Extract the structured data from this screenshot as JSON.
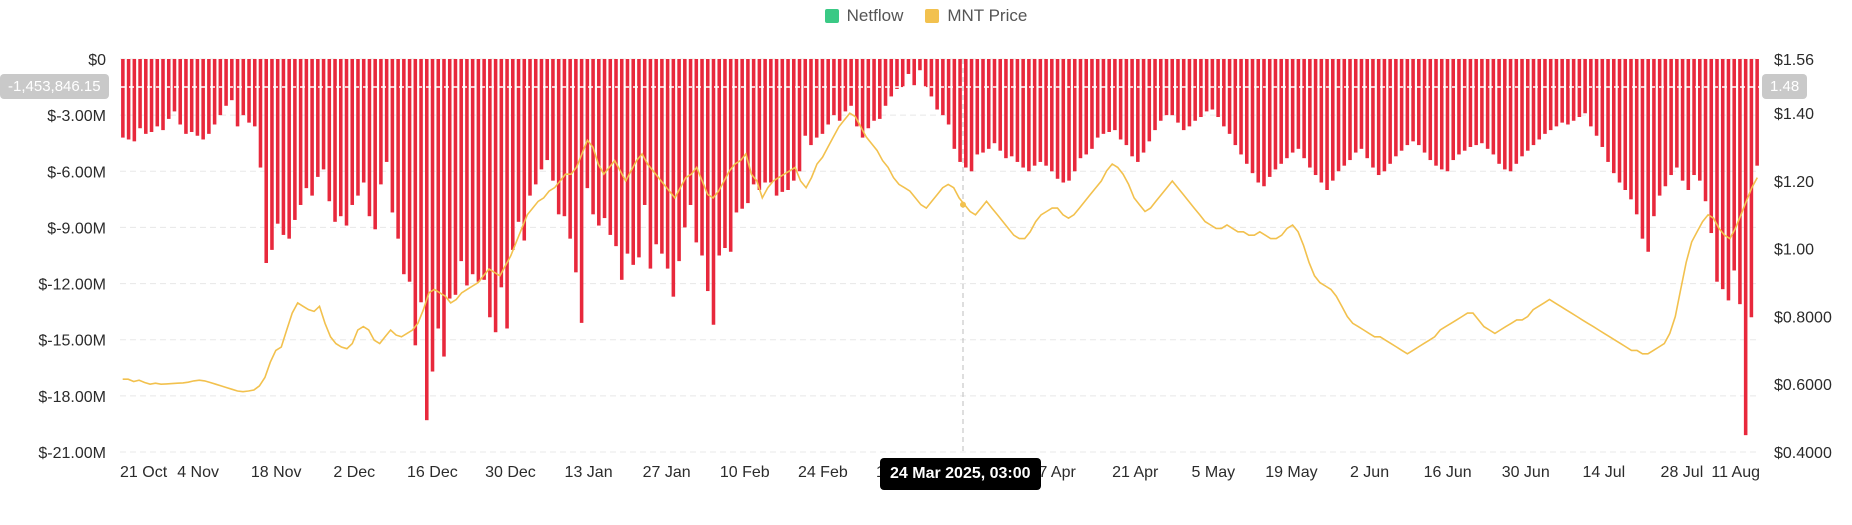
{
  "legend": {
    "netflow_label": "Netflow",
    "price_label": "MNT Price",
    "netflow_color": "#3ac985",
    "price_color": "#f2c14e"
  },
  "crosshair": {
    "left_value": "-1,453,846.15",
    "right_value": "1.48",
    "date_label": "24 Mar 2025, 03:00"
  },
  "chart_data": {
    "type": "bar",
    "x_tick_labels": [
      "21 Oct",
      "4 Nov",
      "18 Nov",
      "2 Dec",
      "16 Dec",
      "30 Dec",
      "13 Jan",
      "27 Jan",
      "10 Feb",
      "24 Feb",
      "10 Mar",
      "24 Mar",
      "7 Apr",
      "21 Apr",
      "5 May",
      "19 May",
      "2 Jun",
      "16 Jun",
      "30 Jun",
      "14 Jul",
      "28 Jul",
      "11 Aug"
    ],
    "y_left": {
      "ticks": [
        0,
        -3000000,
        -6000000,
        -9000000,
        -12000000,
        -15000000,
        -18000000,
        -21000000
      ],
      "tick_labels": [
        "$0",
        "$-3.00M",
        "$-6.00M",
        "$-9.00M",
        "$-12.00M",
        "$-15.00M",
        "$-18.00M",
        "$-21.00M"
      ],
      "range": [
        -21000000,
        0
      ]
    },
    "y_right": {
      "ticks": [
        1.56,
        1.4,
        1.2,
        1.0,
        0.8,
        0.6,
        0.4
      ],
      "tick_labels": [
        "$1.56",
        "$1.40",
        "$1.20",
        "$1.00",
        "$0.8000",
        "$0.6000",
        "$0.4000"
      ],
      "range": [
        0.4,
        1.56
      ]
    },
    "grid": true,
    "legend_position": "top-center",
    "series": [
      {
        "name": "Netflow",
        "type": "bar",
        "color": "#e8283c",
        "values": [
          -4.2,
          -4.3,
          -4.4,
          -3.7,
          -4.0,
          -3.9,
          -3.6,
          -3.8,
          -3.2,
          -2.8,
          -3.5,
          -4.0,
          -3.9,
          -4.1,
          -4.3,
          -4.0,
          -3.5,
          -3.0,
          -2.5,
          -2.2,
          -3.6,
          -3.0,
          -3.4,
          -3.6,
          -5.8,
          -10.9,
          -10.2,
          -8.8,
          -9.4,
          -9.6,
          -8.6,
          -7.8,
          -6.9,
          -7.3,
          -6.3,
          -5.9,
          -7.6,
          -8.7,
          -8.4,
          -8.9,
          -7.8,
          -7.3,
          -6.6,
          -8.4,
          -9.1,
          -6.7,
          -5.5,
          -8.2,
          -9.6,
          -11.5,
          -11.9,
          -15.3,
          -13.0,
          -19.3,
          -16.7,
          -14.4,
          -15.9,
          -12.8,
          -12.6,
          -10.8,
          -12.1,
          -11.5,
          -11.9,
          -11.8,
          -13.8,
          -14.6,
          -12.2,
          -14.4,
          -10.2,
          -8.7,
          -9.7,
          -7.3,
          -6.7,
          -5.9,
          -5.4,
          -6.5,
          -8.3,
          -8.4,
          -9.6,
          -11.4,
          -14.1,
          -6.9,
          -8.3,
          -8.9,
          -8.5,
          -9.4,
          -10.0,
          -11.8,
          -10.4,
          -11.0,
          -10.6,
          -7.8,
          -11.2,
          -9.9,
          -10.4,
          -11.2,
          -12.7,
          -10.8,
          -9.0,
          -7.8,
          -9.8,
          -10.5,
          -12.4,
          -14.2,
          -10.5,
          -10.1,
          -10.3,
          -8.2,
          -8.0,
          -7.7,
          -6.7,
          -7.0,
          -6.6,
          -6.6,
          -7.3,
          -7.1,
          -7.0,
          -6.5,
          -6.0,
          -4.1,
          -4.6,
          -4.2,
          -4.0,
          -3.5,
          -3.0,
          -3.3,
          -2.8,
          -2.5,
          -3.6,
          -4.2,
          -3.7,
          -3.3,
          -3.2,
          -2.5,
          -2.0,
          -1.6,
          -1.5,
          -0.8,
          -1.4,
          -0.6,
          -1.5,
          -2.0,
          -2.7,
          -3.0,
          -3.5,
          -4.8,
          -5.5,
          -5.8,
          -6.0,
          -5.1,
          -5.0,
          -4.8,
          -4.5,
          -4.9,
          -5.3,
          -5.2,
          -5.5,
          -5.8,
          -6.0,
          -5.7,
          -5.5,
          -5.7,
          -6.0,
          -6.4,
          -6.6,
          -6.5,
          -6.0,
          -5.3,
          -5.1,
          -4.8,
          -4.2,
          -4.0,
          -3.9,
          -3.8,
          -4.3,
          -4.6,
          -5.2,
          -5.5,
          -5.0,
          -4.4,
          -3.8,
          -3.3,
          -3.0,
          -3.0,
          -3.4,
          -3.8,
          -3.6,
          -3.3,
          -3.1,
          -2.8,
          -2.7,
          -3.1,
          -3.6,
          -4.0,
          -4.6,
          -5.1,
          -5.6,
          -6.1,
          -6.6,
          -6.8,
          -6.3,
          -5.9,
          -5.6,
          -5.3,
          -5.0,
          -4.8,
          -5.3,
          -5.8,
          -6.2,
          -6.6,
          -7.0,
          -6.5,
          -6.0,
          -5.7,
          -5.4,
          -5.0,
          -4.8,
          -5.3,
          -5.8,
          -6.2,
          -6.0,
          -5.6,
          -5.2,
          -4.9,
          -4.6,
          -4.4,
          -4.6,
          -5.0,
          -5.4,
          -5.7,
          -5.9,
          -6.0,
          -5.4,
          -5.1,
          -4.9,
          -4.7,
          -4.6,
          -4.5,
          -4.8,
          -5.1,
          -5.6,
          -5.9,
          -6.0,
          -5.6,
          -5.2,
          -4.9,
          -4.6,
          -4.3,
          -4.0,
          -3.8,
          -3.6,
          -3.4,
          -3.5,
          -3.3,
          -3.1,
          -2.9,
          -3.6,
          -4.1,
          -4.7,
          -5.5,
          -6.1,
          -6.6,
          -7.0,
          -7.5,
          -8.3,
          -9.6,
          -10.3,
          -8.4,
          -7.3,
          -6.8,
          -6.2,
          -5.8,
          -6.5,
          -7.0,
          -6.2,
          -6.5,
          -7.6,
          -9.3,
          -11.9,
          -12.3,
          -12.9,
          -11.3,
          -13.1,
          -20.1,
          -13.8,
          -5.7
        ]
      },
      {
        "name": "MNT Price",
        "type": "line",
        "color": "#f2c14e",
        "values": [
          0.615,
          0.615,
          0.608,
          0.612,
          0.605,
          0.6,
          0.603,
          0.6,
          0.601,
          0.602,
          0.603,
          0.604,
          0.606,
          0.61,
          0.612,
          0.61,
          0.605,
          0.6,
          0.595,
          0.59,
          0.585,
          0.58,
          0.578,
          0.58,
          0.583,
          0.595,
          0.62,
          0.665,
          0.7,
          0.71,
          0.76,
          0.81,
          0.84,
          0.83,
          0.82,
          0.815,
          0.83,
          0.78,
          0.74,
          0.72,
          0.71,
          0.705,
          0.72,
          0.76,
          0.77,
          0.76,
          0.73,
          0.72,
          0.74,
          0.76,
          0.745,
          0.74,
          0.75,
          0.76,
          0.78,
          0.82,
          0.87,
          0.88,
          0.87,
          0.86,
          0.84,
          0.85,
          0.87,
          0.88,
          0.89,
          0.9,
          0.92,
          0.94,
          0.93,
          0.92,
          0.95,
          0.98,
          1.02,
          1.06,
          1.1,
          1.12,
          1.14,
          1.15,
          1.17,
          1.18,
          1.2,
          1.22,
          1.22,
          1.24,
          1.28,
          1.32,
          1.3,
          1.25,
          1.22,
          1.24,
          1.26,
          1.23,
          1.2,
          1.23,
          1.26,
          1.28,
          1.25,
          1.23,
          1.21,
          1.19,
          1.17,
          1.15,
          1.18,
          1.21,
          1.22,
          1.24,
          1.2,
          1.16,
          1.15,
          1.17,
          1.2,
          1.23,
          1.25,
          1.26,
          1.28,
          1.22,
          1.2,
          1.15,
          1.18,
          1.2,
          1.21,
          1.22,
          1.23,
          1.24,
          1.2,
          1.18,
          1.21,
          1.25,
          1.27,
          1.3,
          1.33,
          1.36,
          1.38,
          1.4,
          1.39,
          1.36,
          1.33,
          1.31,
          1.29,
          1.26,
          1.24,
          1.21,
          1.19,
          1.18,
          1.17,
          1.15,
          1.13,
          1.12,
          1.14,
          1.16,
          1.18,
          1.19,
          1.18,
          1.15,
          1.13,
          1.11,
          1.1,
          1.12,
          1.14,
          1.12,
          1.1,
          1.08,
          1.06,
          1.04,
          1.03,
          1.03,
          1.05,
          1.08,
          1.1,
          1.11,
          1.12,
          1.12,
          1.1,
          1.09,
          1.1,
          1.12,
          1.14,
          1.16,
          1.18,
          1.2,
          1.23,
          1.25,
          1.24,
          1.22,
          1.19,
          1.15,
          1.13,
          1.11,
          1.12,
          1.14,
          1.16,
          1.18,
          1.2,
          1.18,
          1.16,
          1.14,
          1.12,
          1.1,
          1.08,
          1.07,
          1.06,
          1.06,
          1.07,
          1.06,
          1.05,
          1.05,
          1.04,
          1.04,
          1.05,
          1.04,
          1.03,
          1.03,
          1.04,
          1.06,
          1.07,
          1.05,
          1.01,
          0.96,
          0.92,
          0.9,
          0.89,
          0.88,
          0.86,
          0.83,
          0.8,
          0.78,
          0.77,
          0.76,
          0.75,
          0.74,
          0.74,
          0.73,
          0.72,
          0.71,
          0.7,
          0.69,
          0.7,
          0.71,
          0.72,
          0.73,
          0.74,
          0.76,
          0.77,
          0.78,
          0.79,
          0.8,
          0.81,
          0.81,
          0.79,
          0.77,
          0.76,
          0.75,
          0.76,
          0.77,
          0.78,
          0.79,
          0.79,
          0.8,
          0.82,
          0.83,
          0.84,
          0.85,
          0.84,
          0.83,
          0.82,
          0.81,
          0.8,
          0.79,
          0.78,
          0.77,
          0.76,
          0.75,
          0.74,
          0.73,
          0.72,
          0.71,
          0.7,
          0.7,
          0.69,
          0.69,
          0.7,
          0.71,
          0.72,
          0.75,
          0.8,
          0.88,
          0.96,
          1.02,
          1.05,
          1.08,
          1.1,
          1.09,
          1.06,
          1.04,
          1.03,
          1.06,
          1.1,
          1.14,
          1.18,
          1.21
        ]
      }
    ]
  }
}
